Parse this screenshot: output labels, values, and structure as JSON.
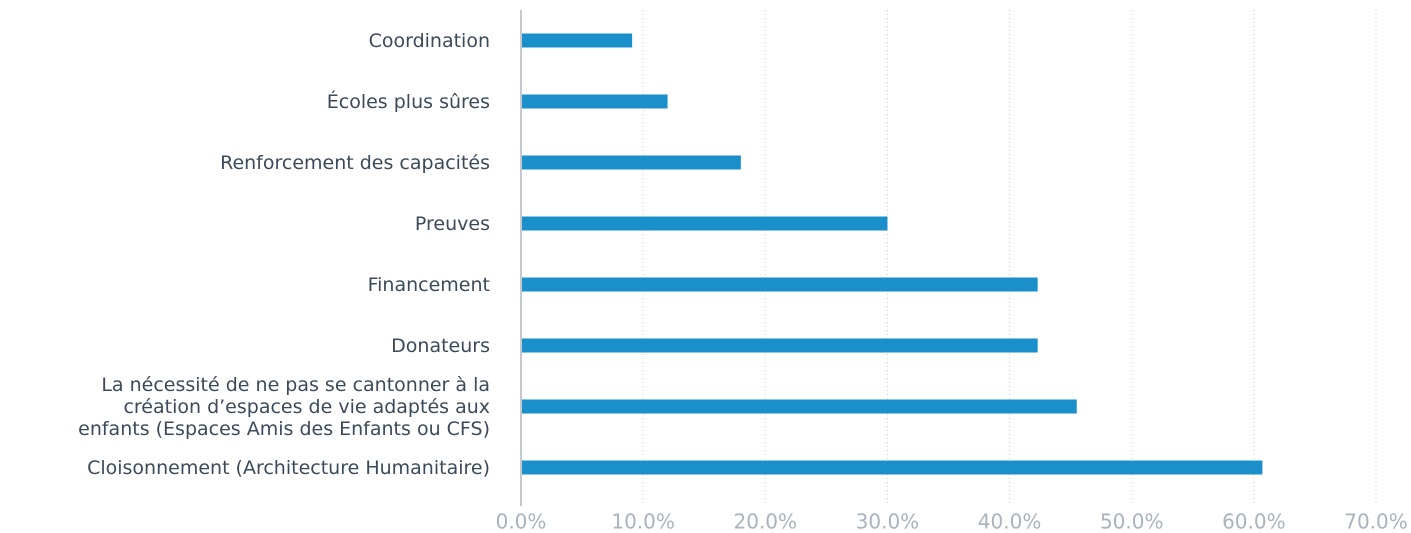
{
  "chart_data": {
    "type": "bar",
    "orientation": "horizontal",
    "categories": [
      "Coordination",
      "Écoles plus sûres",
      "Renforcement des capacités",
      "Preuves",
      "Financement",
      "Donateurs",
      "La nécessité de ne pas se cantonner à la\ncréation d’espaces de vie adaptés aux\nenfants (Espaces Amis des Enfants ou CFS)",
      "Cloisonnement (Architecture Humanitaire)"
    ],
    "values": [
      9.1,
      12.0,
      18.0,
      30.0,
      42.3,
      42.3,
      45.5,
      60.7
    ],
    "color": "#1a8fc9",
    "xlim": [
      0,
      70
    ],
    "xticks": [
      {
        "value": 0,
        "label": "0.0%"
      },
      {
        "value": 10,
        "label": "10.0%"
      },
      {
        "value": 20,
        "label": "20.0%"
      },
      {
        "value": 30,
        "label": "30.0%"
      },
      {
        "value": 40,
        "label": "40.0%"
      },
      {
        "value": 50,
        "label": "50.0%"
      },
      {
        "value": 60,
        "label": "60.0%"
      },
      {
        "value": 70,
        "label": "70.0%"
      }
    ],
    "grid": true
  }
}
